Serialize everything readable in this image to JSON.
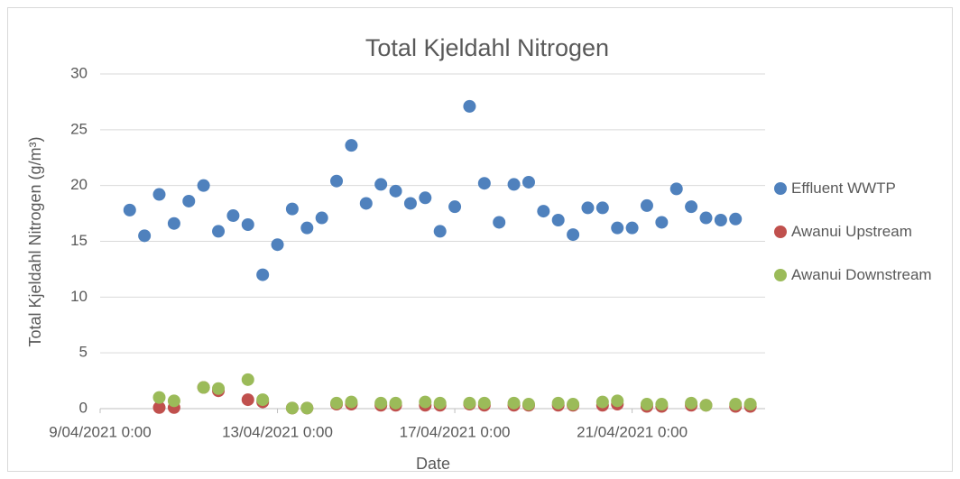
{
  "chart_data": {
    "type": "scatter",
    "title": "Total Kjeldahl Nitrogen",
    "x_label": "Date",
    "y_label": "Total Kjeldahl Nitrogen (g/m³)",
    "xlim": [
      44295,
      44310
    ],
    "xticks": [
      {
        "value": 44295,
        "label": "9/04/2021 0:00"
      },
      {
        "value": 44299,
        "label": "13/04/2021 0:00"
      },
      {
        "value": 44303,
        "label": "17/04/2021 0:00"
      },
      {
        "value": 44307,
        "label": "21/04/2021 0:00"
      }
    ],
    "ylim": [
      0,
      30
    ],
    "yticks": [
      0,
      5,
      10,
      15,
      20,
      25,
      30
    ],
    "grid": true,
    "legend": "right",
    "series": [
      {
        "name": "Effluent WWTP",
        "color": "#4f81bd",
        "x": [
          44295.667,
          44296,
          44296.333,
          44296.667,
          44297,
          44297.333,
          44297.667,
          44298,
          44298.333,
          44298.667,
          44299,
          44299.333,
          44299.667,
          44300,
          44300.333,
          44300.667,
          44301,
          44301.333,
          44301.667,
          44302,
          44302.333,
          44302.667,
          44303,
          44303.333,
          44303.667,
          44304,
          44304.333,
          44304.667,
          44305,
          44305.333,
          44305.667,
          44306,
          44306.333,
          44306.667,
          44307,
          44307.333,
          44307.667,
          44308,
          44308.333,
          44308.667,
          44309,
          44309.333
        ],
        "values": [
          17.8,
          15.5,
          19.2,
          16.6,
          18.6,
          20.0,
          15.9,
          17.3,
          16.5,
          12.0,
          14.7,
          17.9,
          16.2,
          17.1,
          20.4,
          23.6,
          18.4,
          20.1,
          19.5,
          18.4,
          18.9,
          15.9,
          18.1,
          27.1,
          20.2,
          16.7,
          20.1,
          20.3,
          17.7,
          16.9,
          15.6,
          18.0,
          18.0,
          16.2,
          16.2,
          18.2,
          16.7,
          19.7,
          18.1,
          17.1,
          16.9,
          17.0
        ]
      },
      {
        "name": "Awanui Upstream",
        "color": "#c0504d",
        "x": [
          44296.333,
          44296.667,
          44297.333,
          44297.667,
          44298.333,
          44298.667,
          44299.333,
          44299.667,
          44300.333,
          44300.667,
          44301.333,
          44301.667,
          44302.333,
          44302.667,
          44303.333,
          44303.667,
          44304.333,
          44304.667,
          44305.333,
          44305.667,
          44306.333,
          44306.667,
          44307.333,
          44307.667,
          44308.333,
          44308.667,
          44309.333,
          44309.667
        ],
        "values": [
          0.1,
          0.1,
          1.9,
          1.6,
          0.8,
          0.6,
          0.05,
          0.05,
          0.4,
          0.4,
          0.3,
          0.3,
          0.3,
          0.3,
          0.4,
          0.3,
          0.3,
          0.3,
          0.3,
          0.3,
          0.3,
          0.4,
          0.2,
          0.2,
          0.3,
          0.3,
          0.2,
          0.2
        ]
      },
      {
        "name": "Awanui Downstream",
        "color": "#9bbb59",
        "x": [
          44296.333,
          44296.667,
          44297.333,
          44297.667,
          44298.333,
          44298.667,
          44299.333,
          44299.667,
          44300.333,
          44300.667,
          44301.333,
          44301.667,
          44302.333,
          44302.667,
          44303.333,
          44303.667,
          44304.333,
          44304.667,
          44305.333,
          44305.667,
          44306.333,
          44306.667,
          44307.333,
          44307.667,
          44308.333,
          44308.667,
          44309.333,
          44309.667
        ],
        "values": [
          1.0,
          0.7,
          1.9,
          1.8,
          2.6,
          0.8,
          0.05,
          0.05,
          0.5,
          0.6,
          0.5,
          0.5,
          0.6,
          0.5,
          0.5,
          0.5,
          0.5,
          0.4,
          0.5,
          0.4,
          0.6,
          0.7,
          0.4,
          0.4,
          0.5,
          0.3,
          0.4,
          0.4
        ]
      }
    ]
  }
}
